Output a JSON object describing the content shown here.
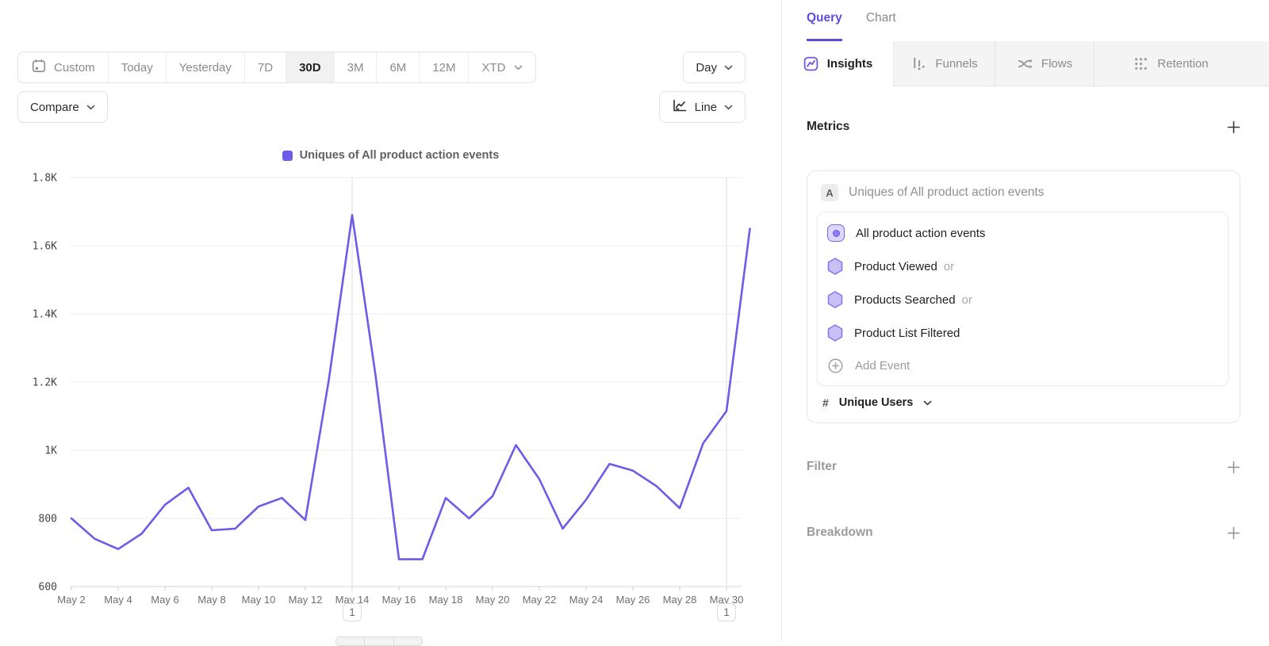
{
  "toolbar": {
    "ranges": [
      {
        "label": "Custom"
      },
      {
        "label": "Today"
      },
      {
        "label": "Yesterday"
      },
      {
        "label": "7D"
      },
      {
        "label": "30D",
        "active": true
      },
      {
        "label": "3M"
      },
      {
        "label": "6M"
      },
      {
        "label": "12M"
      },
      {
        "label": "XTD"
      }
    ],
    "granularity_label": "Day",
    "compare_label": "Compare",
    "chart_type_label": "Line"
  },
  "legend": {
    "series_label": "Uniques of All product action events",
    "swatch_color": "#6e5be8"
  },
  "chart_data": {
    "type": "line",
    "title": "Uniques of All product action events",
    "line_color": "#6e5be8",
    "ylim": [
      600,
      1800
    ],
    "y_ticks": [
      {
        "value": 1800,
        "label": "1.8K"
      },
      {
        "value": 1600,
        "label": "1.6K"
      },
      {
        "value": 1400,
        "label": "1.4K"
      },
      {
        "value": 1200,
        "label": "1.2K"
      },
      {
        "value": 1000,
        "label": "1K"
      },
      {
        "value": 800,
        "label": "800"
      },
      {
        "value": 600,
        "label": "600"
      }
    ],
    "x": [
      "May 2",
      "May 3",
      "May 4",
      "May 5",
      "May 6",
      "May 7",
      "May 8",
      "May 9",
      "May 10",
      "May 11",
      "May 12",
      "May 13",
      "May 14",
      "May 15",
      "May 16",
      "May 17",
      "May 18",
      "May 19",
      "May 20",
      "May 21",
      "May 22",
      "May 23",
      "May 24",
      "May 25",
      "May 26",
      "May 27",
      "May 28",
      "May 29",
      "May 30",
      "May 31"
    ],
    "values": [
      800,
      740,
      710,
      755,
      840,
      890,
      765,
      770,
      835,
      860,
      795,
      1205,
      1690,
      1220,
      680,
      680,
      860,
      800,
      865,
      1015,
      915,
      770,
      855,
      960,
      940,
      895,
      830,
      1020,
      1115,
      1650
    ],
    "x_tick_every": 2,
    "grid": "horizontal",
    "legend_position": "top-center",
    "annotations": [
      {
        "x": "May 14",
        "label": "1"
      },
      {
        "x": "May 30",
        "label": "1"
      }
    ]
  },
  "query_panel": {
    "tabs": {
      "query": "Query",
      "chart": "Chart"
    },
    "report_tabs": {
      "insights": "Insights",
      "funnels": "Funnels",
      "flows": "Flows",
      "retention": "Retention"
    },
    "metrics": {
      "title": "Metrics",
      "metric": {
        "badge": "A",
        "title": "Uniques of All product action events",
        "events": [
          {
            "name": "All product action events"
          },
          {
            "name": "Product Viewed",
            "suffix": "or"
          },
          {
            "name": "Products Searched",
            "suffix": "or"
          },
          {
            "name": "Product List Filtered"
          }
        ],
        "add_event_label": "Add Event",
        "aggregation": {
          "symbol": "#",
          "label": "Unique Users"
        }
      }
    },
    "filter": {
      "title": "Filter"
    },
    "breakdown": {
      "title": "Breakdown"
    }
  }
}
